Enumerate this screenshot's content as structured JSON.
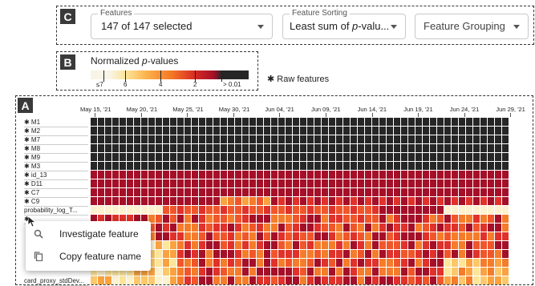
{
  "panels": {
    "a_label": "A",
    "b_label": "B",
    "c_label": "C"
  },
  "controls": {
    "features": {
      "label": "Features",
      "value": "147 of 147 selected"
    },
    "sorting": {
      "label": "Feature Sorting",
      "value_prefix": "Least sum of ",
      "value_italic": "p",
      "value_suffix": "-valu..."
    },
    "grouping": {
      "value": "Feature Grouping"
    }
  },
  "legend": {
    "title_prefix": "Normalized ",
    "title_italic": "p",
    "title_suffix": "-values",
    "ticks": [
      "≤7",
      "6",
      "4",
      "2",
      "> 0.01"
    ],
    "raw_marker": "✱",
    "raw_label": "Raw features"
  },
  "dates": [
    "May 15, '21",
    "May 20, '21",
    "May 25, '21",
    "May 30, '21",
    "Jun 04, '21",
    "Jun 09, '21",
    "Jun 14, '21",
    "Jun 19, '21",
    "Jun 24, '21",
    "Jun 29, '21"
  ],
  "rows": [
    {
      "label": "M1",
      "raw": true
    },
    {
      "label": "M2",
      "raw": true
    },
    {
      "label": "M7",
      "raw": true
    },
    {
      "label": "M8",
      "raw": true
    },
    {
      "label": "M9",
      "raw": true
    },
    {
      "label": "M3",
      "raw": true
    },
    {
      "label": "id_13",
      "raw": true
    },
    {
      "label": "D11",
      "raw": true
    },
    {
      "label": "C7",
      "raw": true
    },
    {
      "label": "C9",
      "raw": true
    },
    {
      "label": "probability_log_T...",
      "raw": false
    },
    {
      "label": "",
      "raw": true
    },
    {
      "label": "",
      "raw": true
    },
    {
      "label": "",
      "raw": false
    },
    {
      "label": "",
      "raw": false
    },
    {
      "label": "",
      "raw": false
    },
    {
      "label": "",
      "raw": true
    },
    {
      "label": "",
      "raw": true
    },
    {
      "label": "card_proxy_stdDev...",
      "raw": false
    }
  ],
  "context_menu": {
    "items": [
      {
        "label": "Investigate feature",
        "icon": "search-icon"
      },
      {
        "label": "Copy feature name",
        "icon": "copy-icon"
      }
    ]
  },
  "colors": {
    "black": "#262626",
    "darkred": "#a50f28",
    "red": "#e0312a",
    "orange": "#f57c2a",
    "yellow": "#fcc86b",
    "pale": "#fdf1cf"
  }
}
